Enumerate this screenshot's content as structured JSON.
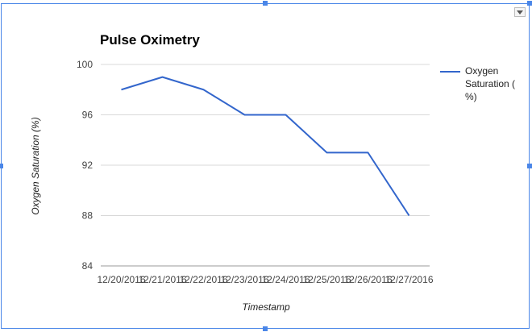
{
  "chart_data": {
    "type": "line",
    "title": "Pulse Oximetry",
    "xlabel": "Timestamp",
    "ylabel": "Oxygen Saturation (%)",
    "categories": [
      "12/20/2016",
      "12/21/2016",
      "12/22/2016",
      "12/23/2016",
      "12/24/2016",
      "12/25/2016",
      "12/26/2016",
      "12/27/2016"
    ],
    "series": [
      {
        "name": "Oxygen Saturation ( %)",
        "values": [
          98,
          99,
          98,
          96,
          96,
          93,
          93,
          88
        ],
        "color": "#3366cc"
      }
    ],
    "ylim": [
      84,
      100
    ],
    "yticks": [
      84,
      88,
      92,
      96,
      100
    ],
    "grid": true,
    "legend_position": "right"
  }
}
